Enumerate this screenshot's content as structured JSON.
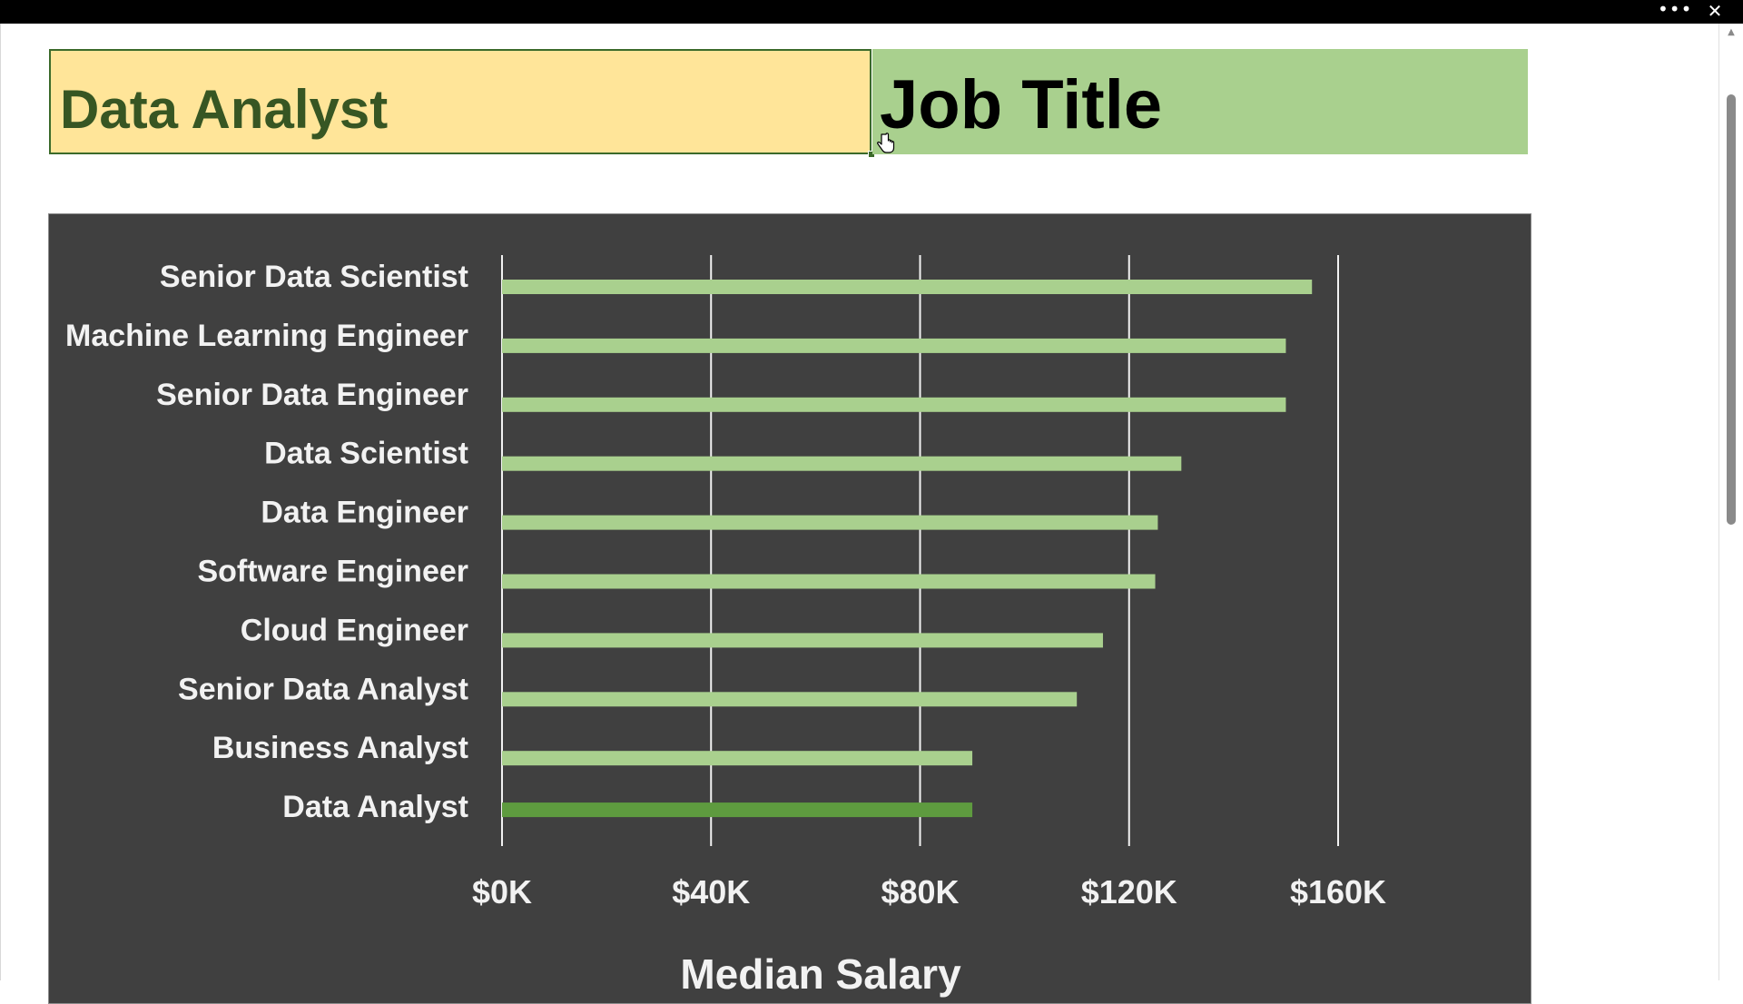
{
  "window": {
    "more_glyph": "•••",
    "close_glyph": "✕"
  },
  "cells": {
    "selected_value": "Data Analyst",
    "header_label": "Job Title"
  },
  "colors": {
    "chart_background": "#404040",
    "bar": "#a9d08e",
    "bar_highlight": "#5e9b3f",
    "gridline": "#f2f2f2",
    "label_text": "#f2f2f2",
    "selected_cell_fill": "#ffe599",
    "selected_cell_text": "#375623",
    "header_cell_fill": "#a9d08e"
  },
  "chart_data": {
    "type": "bar",
    "orientation": "horizontal",
    "categories": [
      "Senior Data Scientist",
      "Machine Learning Engineer",
      "Senior Data Engineer",
      "Data Scientist",
      "Data Engineer",
      "Software Engineer",
      "Cloud Engineer",
      "Senior Data Analyst",
      "Business Analyst",
      "Data Analyst"
    ],
    "values": [
      155000,
      150000,
      150000,
      130000,
      125500,
      125000,
      115000,
      110000,
      90000,
      90000
    ],
    "highlighted": "Data Analyst",
    "xlabel": "Median Salary",
    "xlim": [
      0,
      160000
    ],
    "xticks": [
      0,
      40000,
      80000,
      120000,
      160000
    ],
    "xtick_labels": [
      "$0K",
      "$40K",
      "$80K",
      "$120K",
      "$160K"
    ],
    "grid": true,
    "legend": "none"
  }
}
